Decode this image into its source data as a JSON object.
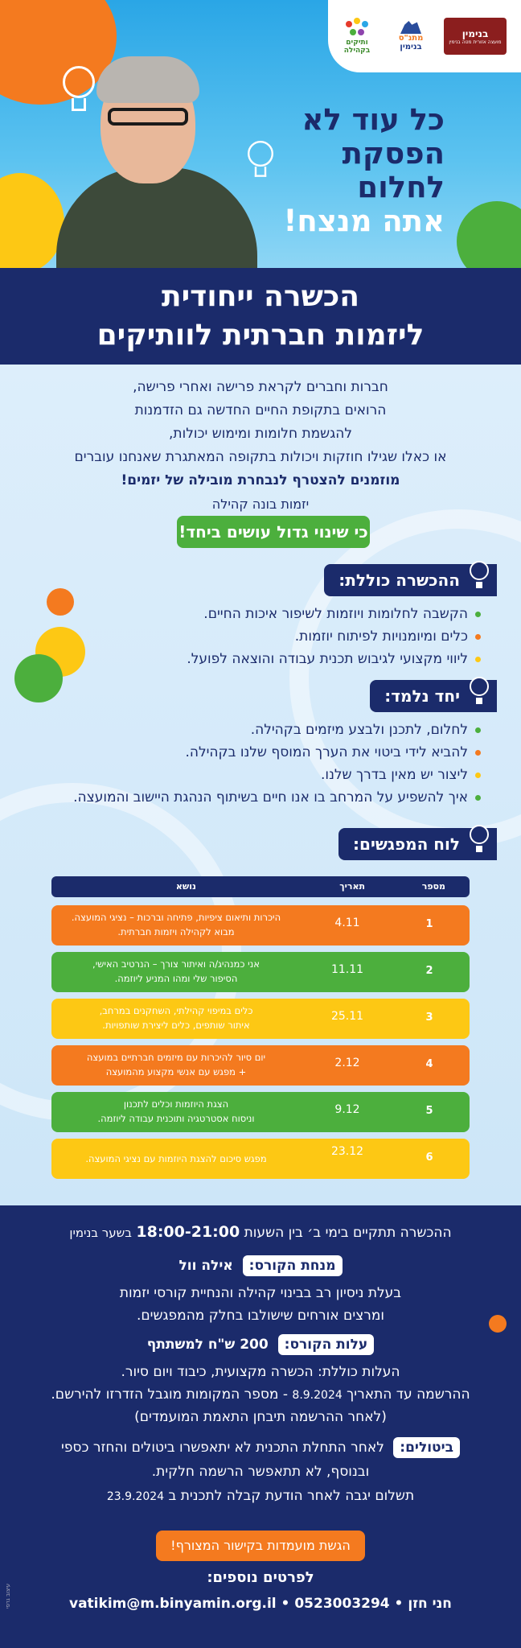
{
  "logos": {
    "binyamin": {
      "name": "בנימין",
      "sub": "מועצה אזורית מטה בנימין"
    },
    "vatikim": {
      "line1": "מתנ\"ס",
      "line2": "בנימין",
      "line3": "ותיקים",
      "sub": "לב המפעל הישראלי"
    },
    "community": {
      "name": "בקהילה"
    }
  },
  "hero": {
    "line1": "כל עוד לא",
    "line2": "הפסקת",
    "line3": "לחלום",
    "line4": "אתה מנצח!"
  },
  "title": {
    "line1": "הכשרה ייחודית",
    "line2": "ליזמות חברתית לוותיקים"
  },
  "intro": {
    "l1": "חברות וחברים לקראת פרישה ואחרי פרישה,",
    "l2": "הרואים בתקופת החיים החדשה גם הזדמנות",
    "l3": "להגשמת חלומות ומימוש יכולות,",
    "l4": "או כאלו שגילו חוזקות ויכולות בתקופה המאתגרת שאנחנו עוברים",
    "l5": "מוזמנים להצטרף לנבחרת מובילה של יזמים!",
    "l6": "יזמות בונה קהילה"
  },
  "together_button": "כי שינוי גדול עושים ביחד!",
  "section_includes": {
    "title": "ההכשרה כוללת:",
    "items": [
      "הקשבה לחלומות ויוזמות לשיפור איכות החיים.",
      "כלים ומיומנויות לפיתוח יוזמות.",
      "ליווי מקצועי לגיבוש תכנית עבודה והוצאה לפועל."
    ]
  },
  "section_together": {
    "title": "יחד נלמד:",
    "items": [
      "לחלום, לתכנן ולבצע מיזמים בקהילה.",
      "להביא לידי ביטוי את הערך המוסף שלנו בקהילה.",
      "ליצור יש מאין בדרך שלנו.",
      "איך להשפיע על המרחב בו אנו חיים בשיתוף הנהגת היישוב והמועצה."
    ]
  },
  "schedule": {
    "title": "לוח המפגשים:",
    "headers": {
      "number": "מספר",
      "date": "תאריך",
      "topic": "נושא"
    },
    "rows": [
      {
        "num": "1",
        "date": "4.11",
        "topic_l1": "היכרות ותיאום ציפיות, פתיחה וברכות – נציגי המועצה.",
        "topic_l2": "מבוא לקהילה ויזמות חברתית."
      },
      {
        "num": "2",
        "date": "11.11",
        "topic_l1": "אני כמנהיג/ה ואיתור צורך – הנרטיב האישי,",
        "topic_l2": "הסיפור שלי ומהו המניע ליוזמה."
      },
      {
        "num": "3",
        "date": "25.11",
        "topic_l1": "כלים במיפוי קהילתי, השחקנים במרחב,",
        "topic_l2": "איתור שותפים, כלים ליצירת שותפויות."
      },
      {
        "num": "4",
        "date": "2.12",
        "topic_l1": "יום סיור להיכרות עם מיזמים חברתיים במועצה",
        "topic_l2": "+ מפגש עם אנשי מקצוע מהמועצה"
      },
      {
        "num": "5",
        "date": "9.12",
        "topic_l1": "הצגת היוזמות וכלים לתכנון",
        "topic_l2": "וניסוח אסטרטגיה ותוכנית עבודה ליוזמה."
      },
      {
        "num": "6",
        "date": "23.12",
        "topic_l1": "מפגש סיכום להצגת היוזמות עם נציגי המועצה.",
        "topic_l2": ""
      }
    ]
  },
  "footer": {
    "schedule_line": "ההכשרה תתקיים בימי ב׳ בין השעות",
    "hours": "18:00-21:00",
    "location": "בשער בנימין",
    "facilitator_label": "מנחת הקורס:",
    "facilitator_name": "אילה וול",
    "facilitator_bio1": "בעלת ניסיון רב בבינוי קהילה והנחיית קורסי יזמות",
    "facilitator_bio2": "ומרצים אורחים שישולבו בחלק מהמפגשים.",
    "cost_label": "עלות הקורס:",
    "cost_value": "200 ש\"ח למשתתף",
    "cost_includes": "העלות כוללת: הכשרה מקצועית, כיבוד ויום סיור.",
    "register_prefix": "ההרשמה עד התאריך",
    "register_date": "8.9.2024",
    "register_suffix": "- מספר המקומות מוגבל הזדרזו להירשם.",
    "register_note": "(לאחר ההרשמה תיבחן התאמת המועמדים)",
    "cancel_label": "ביטולים:",
    "cancel_text1": "לאחר התחלת התכנית לא יתאפשרו ביטולים והחזר כספי",
    "cancel_text2": "ובנוסף, לא תתאפשר הרשמה חלקית.",
    "payment_prefix": "תשלום יגבה לאחר הודעת קבלה לתכנית ב",
    "payment_date": "23.9.2024",
    "cta": "הגשת מועמדות בקישור המצורף!",
    "details_title": "לפרטים נוספים:",
    "contact_name": "חני חזן",
    "contact_phone": "0523003294",
    "contact_email": "vatikim@m.binyamin.org.il",
    "credit": "עיצוב גרפי"
  },
  "colors": {
    "navy": "#1b2b6b",
    "orange": "#f47a1f",
    "green": "#4caf3d",
    "yellow": "#fdc814",
    "sky": "#2aa6e6"
  }
}
